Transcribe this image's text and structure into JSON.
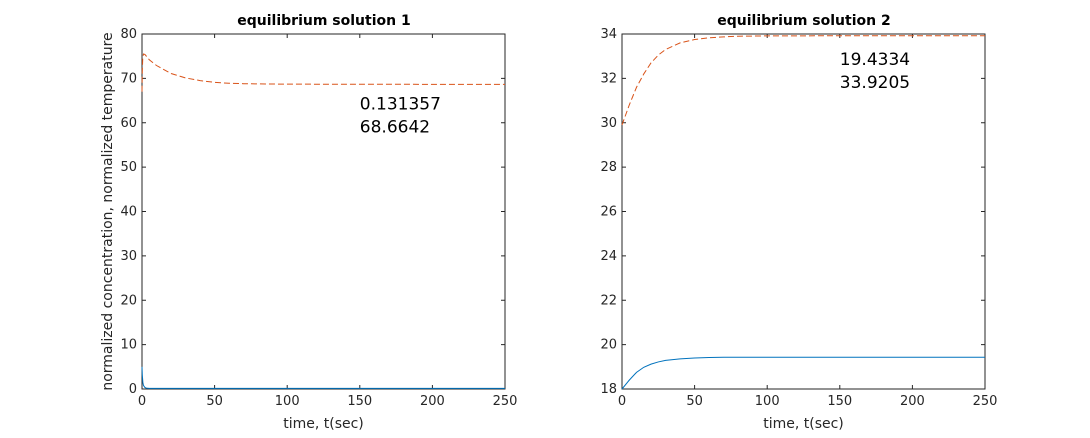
{
  "chart_data": [
    {
      "type": "line",
      "title": "equilibrium solution 1",
      "xlabel": "time, t(sec)",
      "ylabel": "normalized concentration, normalized temperature",
      "xlim": [
        0,
        250
      ],
      "ylim": [
        0,
        80
      ],
      "xticks": [
        0,
        50,
        100,
        150,
        200,
        250
      ],
      "yticks": [
        0,
        10,
        20,
        30,
        40,
        50,
        60,
        70,
        80
      ],
      "annotation": [
        "0.131357",
        "68.6642"
      ],
      "annotation_at": [
        150,
        63
      ],
      "series": [
        {
          "style": "solid",
          "color": "#0072bd",
          "x": [
            0,
            0.2,
            0.6,
            1,
            2,
            3,
            5,
            10,
            20,
            50,
            100,
            150,
            200,
            250
          ],
          "y": [
            5,
            3.2,
            1.5,
            0.8,
            0.35,
            0.2,
            0.15,
            0.14,
            0.135,
            0.132,
            0.131,
            0.131,
            0.131,
            0.131
          ]
        },
        {
          "style": "dashed",
          "color": "#d95319",
          "x": [
            0,
            0.2,
            0.5,
            1,
            2,
            5,
            10,
            20,
            30,
            40,
            50,
            60,
            70,
            80,
            100,
            150,
            200,
            250
          ],
          "y": [
            67,
            71.5,
            74.5,
            75.5,
            75.4,
            74.2,
            72.9,
            71.1,
            70.1,
            69.5,
            69.1,
            68.9,
            68.8,
            68.75,
            68.7,
            68.67,
            68.66,
            68.66
          ]
        }
      ]
    },
    {
      "type": "line",
      "title": "equilibrium solution 2",
      "xlabel": "time, t(sec)",
      "ylabel": "",
      "xlim": [
        0,
        250
      ],
      "ylim": [
        18,
        34
      ],
      "xticks": [
        0,
        50,
        100,
        150,
        200,
        250
      ],
      "yticks": [
        18,
        20,
        22,
        24,
        26,
        28,
        30,
        32,
        34
      ],
      "annotation": [
        "19.4334",
        "33.9205"
      ],
      "annotation_at": [
        150,
        32.6
      ],
      "series": [
        {
          "style": "solid",
          "color": "#0072bd",
          "x": [
            0,
            5,
            10,
            15,
            20,
            25,
            30,
            40,
            50,
            60,
            70,
            80,
            100,
            150,
            200,
            250
          ],
          "y": [
            18,
            18.4,
            18.75,
            18.98,
            19.12,
            19.22,
            19.29,
            19.36,
            19.4,
            19.42,
            19.43,
            19.43,
            19.433,
            19.4334,
            19.4334,
            19.4334
          ]
        },
        {
          "style": "dashed",
          "color": "#d95319",
          "x": [
            0,
            5,
            10,
            15,
            20,
            25,
            30,
            40,
            50,
            60,
            70,
            80,
            100,
            150,
            200,
            250
          ],
          "y": [
            29.9,
            30.8,
            31.6,
            32.2,
            32.7,
            33.05,
            33.3,
            33.6,
            33.75,
            33.83,
            33.87,
            33.9,
            33.915,
            33.92,
            33.9205,
            33.9205
          ]
        }
      ]
    }
  ]
}
